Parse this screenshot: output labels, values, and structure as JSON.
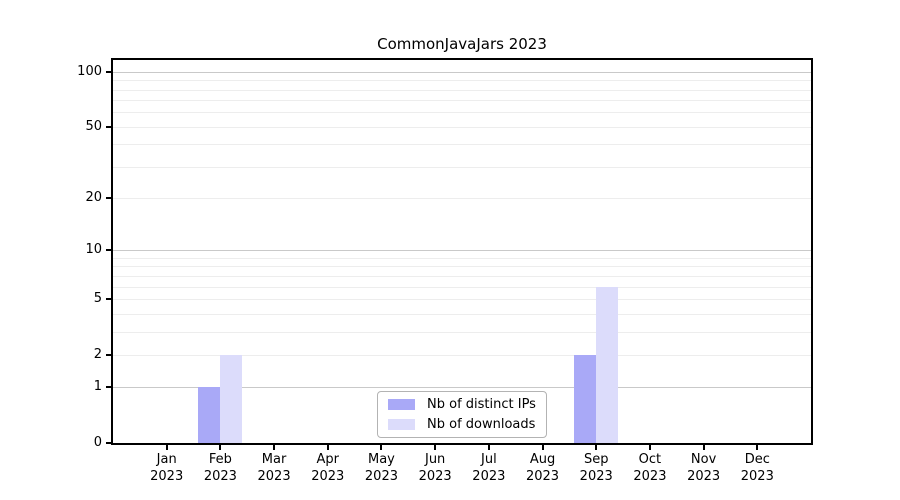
{
  "chart_data": {
    "type": "bar",
    "title": "CommonJavaJars 2023",
    "categories": [
      {
        "line1": "Jan",
        "line2": "2023"
      },
      {
        "line1": "Feb",
        "line2": "2023"
      },
      {
        "line1": "Mar",
        "line2": "2023"
      },
      {
        "line1": "Apr",
        "line2": "2023"
      },
      {
        "line1": "May",
        "line2": "2023"
      },
      {
        "line1": "Jun",
        "line2": "2023"
      },
      {
        "line1": "Jul",
        "line2": "2023"
      },
      {
        "line1": "Aug",
        "line2": "2023"
      },
      {
        "line1": "Sep",
        "line2": "2023"
      },
      {
        "line1": "Oct",
        "line2": "2023"
      },
      {
        "line1": "Nov",
        "line2": "2023"
      },
      {
        "line1": "Dec",
        "line2": "2023"
      }
    ],
    "series": [
      {
        "name": "Nb of distinct IPs",
        "color": "#a9a9f7",
        "values": [
          0,
          1,
          0,
          0,
          0,
          0,
          0,
          0,
          2,
          0,
          0,
          0
        ]
      },
      {
        "name": "Nb of downloads",
        "color": "#dcdcfb",
        "values": [
          0,
          2,
          0,
          0,
          0,
          0,
          0,
          0,
          6,
          0,
          0,
          0
        ]
      }
    ],
    "xlabel": "",
    "ylabel": "",
    "yscale": "log1p",
    "ylim": [
      0,
      115
    ],
    "yticks": [
      0,
      1,
      2,
      5,
      10,
      20,
      50,
      100
    ],
    "major_gridlines": [
      1,
      10,
      100
    ],
    "minor_gridlines": [
      2,
      3,
      4,
      5,
      6,
      7,
      8,
      9,
      20,
      30,
      40,
      50,
      60,
      70,
      80,
      90
    ],
    "grid": true,
    "legend_position": "lower center",
    "colors": {
      "major_gridline": "#c9c9c9",
      "minor_gridline": "#ededed",
      "axis": "#000000",
      "background": "#ffffff",
      "legend_border": "#b3b3b3"
    }
  }
}
